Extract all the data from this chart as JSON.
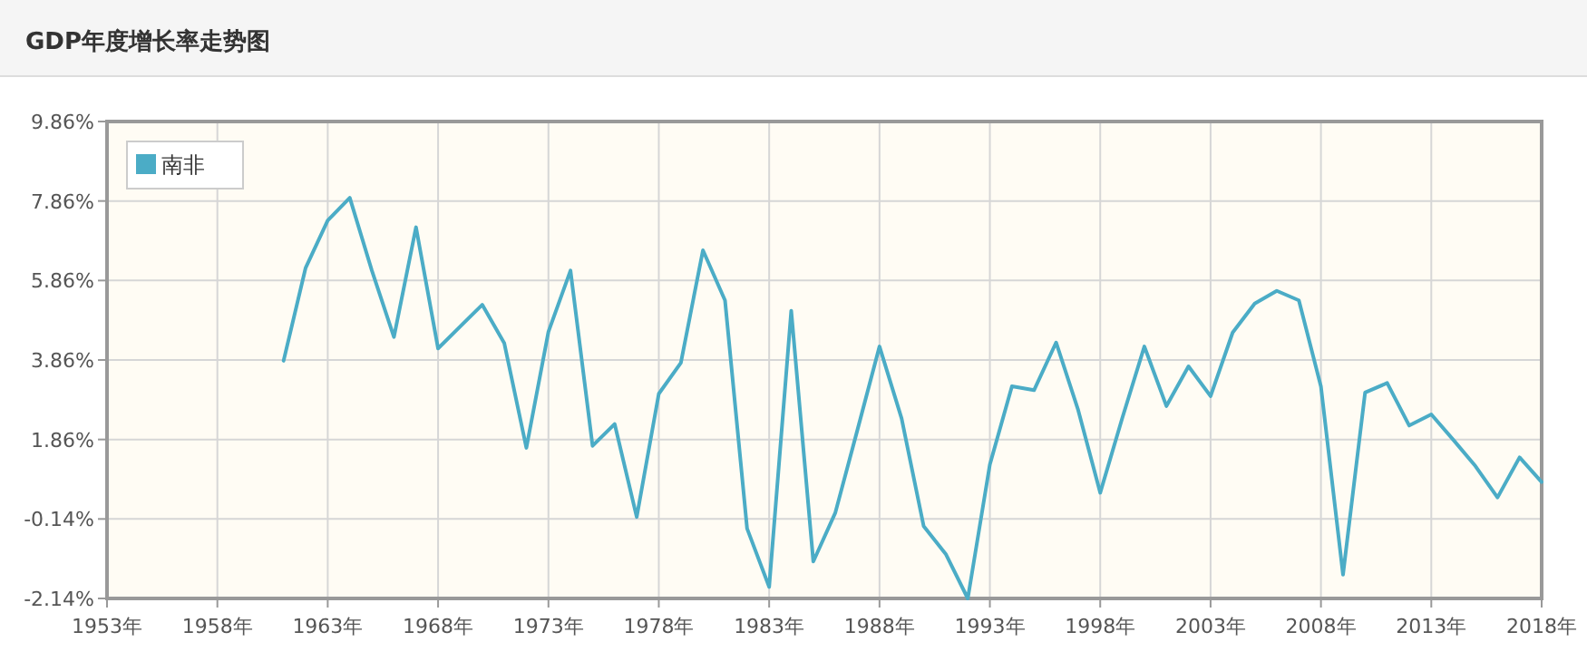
{
  "chart_data": {
    "type": "line",
    "title": "GDP年度增长率走势图",
    "x": [
      1961,
      1962,
      1963,
      1964,
      1965,
      1966,
      1967,
      1968,
      1969,
      1970,
      1971,
      1972,
      1973,
      1974,
      1975,
      1976,
      1977,
      1978,
      1979,
      1980,
      1981,
      1982,
      1983,
      1984,
      1985,
      1986,
      1987,
      1988,
      1989,
      1990,
      1991,
      1992,
      1993,
      1994,
      1995,
      1996,
      1997,
      1998,
      1999,
      2000,
      2001,
      2002,
      2003,
      2004,
      2005,
      2006,
      2007,
      2008,
      2009,
      2010,
      2011,
      2012,
      2013,
      2014,
      2015,
      2016,
      2017,
      2018
    ],
    "series": [
      {
        "name": "南非",
        "color": "#4bacc6",
        "values": [
          3.84,
          6.18,
          7.37,
          7.94,
          6.11,
          4.44,
          7.2,
          4.15,
          4.7,
          5.25,
          4.28,
          1.65,
          4.57,
          6.11,
          1.7,
          2.25,
          -0.09,
          3.01,
          3.79,
          6.62,
          5.36,
          -0.38,
          -1.85,
          5.1,
          -1.21,
          0.02,
          2.1,
          4.2,
          2.39,
          -0.32,
          -1.02,
          -2.14,
          1.23,
          3.2,
          3.1,
          4.3,
          2.6,
          0.52,
          2.4,
          4.2,
          2.7,
          3.7,
          2.95,
          4.55,
          5.28,
          5.6,
          5.36,
          3.19,
          -1.54,
          3.04,
          3.28,
          2.21,
          2.49,
          1.85,
          1.19,
          0.4,
          1.41,
          0.79
        ]
      }
    ],
    "xlim": [
      1953,
      2018
    ],
    "xticks": [
      {
        "value": 1953,
        "label": "1953年"
      },
      {
        "value": 1958,
        "label": "1958年"
      },
      {
        "value": 1963,
        "label": "1963年"
      },
      {
        "value": 1968,
        "label": "1968年"
      },
      {
        "value": 1973,
        "label": "1973年"
      },
      {
        "value": 1978,
        "label": "1978年"
      },
      {
        "value": 1983,
        "label": "1983年"
      },
      {
        "value": 1988,
        "label": "1988年"
      },
      {
        "value": 1993,
        "label": "1993年"
      },
      {
        "value": 1998,
        "label": "1998年"
      },
      {
        "value": 2003,
        "label": "2003年"
      },
      {
        "value": 2008,
        "label": "2008年"
      },
      {
        "value": 2013,
        "label": "2013年"
      },
      {
        "value": 2018,
        "label": "2018年"
      }
    ],
    "ylim": [
      -2.14,
      9.86
    ],
    "yticks": [
      {
        "value": -2.14,
        "label": "-2.14%"
      },
      {
        "value": -0.14,
        "label": "-0.14%"
      },
      {
        "value": 1.86,
        "label": "1.86%"
      },
      {
        "value": 3.86,
        "label": "3.86%"
      },
      {
        "value": 5.86,
        "label": "5.86%"
      },
      {
        "value": 7.86,
        "label": "7.86%"
      },
      {
        "value": 9.86,
        "label": "9.86%"
      }
    ],
    "grid": true,
    "legend": "top left",
    "marker": "none",
    "line_style": "solid"
  }
}
